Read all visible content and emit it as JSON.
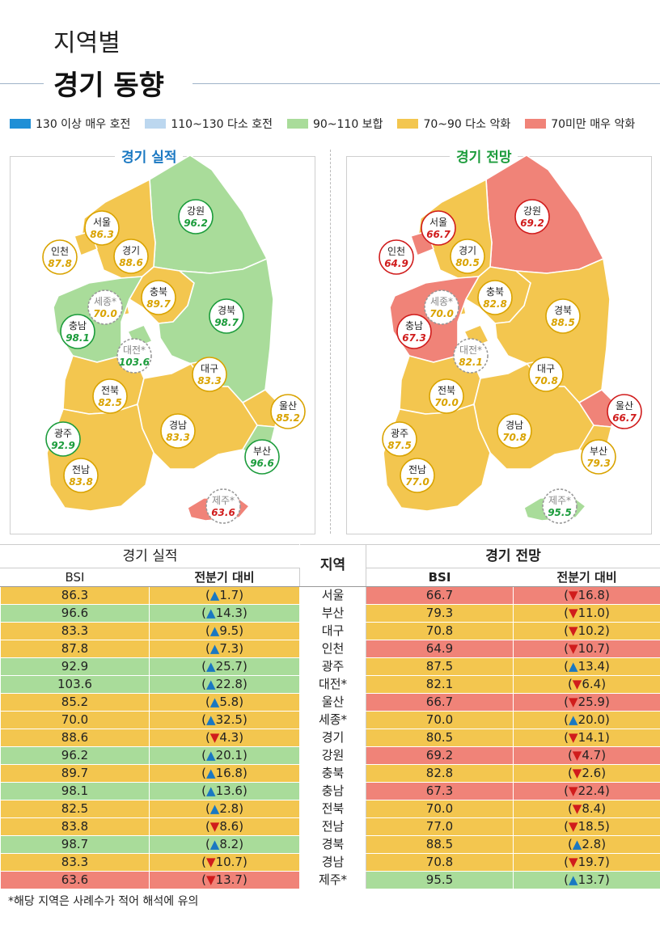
{
  "header": {
    "subtitle": "지역별",
    "title": "경기 동향"
  },
  "legend": [
    {
      "label": "130 이상 매우 호전",
      "color": "#1f8fd6"
    },
    {
      "label": "110~130 다소 호전",
      "color": "#bcd7ef"
    },
    {
      "label": "90~110 보합",
      "color": "#a9dc9a"
    },
    {
      "label": "70~90 다소 악화",
      "color": "#f3c64f"
    },
    {
      "label": "70미만 매우 악화",
      "color": "#f08378"
    }
  ],
  "colors": {
    "level_90_110": "#a9dc9a",
    "level_70_90": "#f3c64f",
    "level_under_70": "#f08378",
    "up_arrow": "#1a78c2",
    "down_arrow": "#d01c1c",
    "badge_green": "#1c9c3c",
    "badge_red": "#d01c1c",
    "badge_orange": "#d9a300",
    "badge_gray": "#999999"
  },
  "maps": {
    "left_title": "경기 실적",
    "right_title": "경기 전망"
  },
  "table": {
    "header_left": "경기 실적",
    "header_center": "지역",
    "header_right": "경기 전망",
    "sub_bsi_left": "BSI",
    "sub_change_left": "전분기 대비",
    "sub_bsi_right": "BSI",
    "sub_change_right": "전분기 대비"
  },
  "footnote": "*해당 지역은 사례수가 적어 해석에 유의",
  "chart_data": {
    "type": "table",
    "title": "경기 동향",
    "columns": [
      "경기 실적 BSI",
      "경기 실적 전분기 대비",
      "지역",
      "경기 전망 BSI",
      "경기 전망 전분기 대비"
    ],
    "rows": [
      {
        "region": "서울",
        "perf_bsi": "86.3",
        "perf_dir": "up",
        "perf_chg": "1.7",
        "out_bsi": "66.7",
        "out_dir": "down",
        "out_chg": "16.8"
      },
      {
        "region": "부산",
        "perf_bsi": "96.6",
        "perf_dir": "up",
        "perf_chg": "14.3",
        "out_bsi": "79.3",
        "out_dir": "down",
        "out_chg": "11.0"
      },
      {
        "region": "대구",
        "perf_bsi": "83.3",
        "perf_dir": "up",
        "perf_chg": "9.5",
        "out_bsi": "70.8",
        "out_dir": "down",
        "out_chg": "10.2"
      },
      {
        "region": "인천",
        "perf_bsi": "87.8",
        "perf_dir": "up",
        "perf_chg": "7.3",
        "out_bsi": "64.9",
        "out_dir": "down",
        "out_chg": "10.7"
      },
      {
        "region": "광주",
        "perf_bsi": "92.9",
        "perf_dir": "up",
        "perf_chg": "25.7",
        "out_bsi": "87.5",
        "out_dir": "up",
        "out_chg": "13.4"
      },
      {
        "region": "대전*",
        "perf_bsi": "103.6",
        "perf_dir": "up",
        "perf_chg": "22.8",
        "out_bsi": "82.1",
        "out_dir": "down",
        "out_chg": "6.4"
      },
      {
        "region": "울산",
        "perf_bsi": "85.2",
        "perf_dir": "up",
        "perf_chg": "5.8",
        "out_bsi": "66.7",
        "out_dir": "down",
        "out_chg": "25.9"
      },
      {
        "region": "세종*",
        "perf_bsi": "70.0",
        "perf_dir": "up",
        "perf_chg": "32.5",
        "out_bsi": "70.0",
        "out_dir": "up",
        "out_chg": "20.0"
      },
      {
        "region": "경기",
        "perf_bsi": "88.6",
        "perf_dir": "down",
        "perf_chg": "4.3",
        "out_bsi": "80.5",
        "out_dir": "down",
        "out_chg": "14.1"
      },
      {
        "region": "강원",
        "perf_bsi": "96.2",
        "perf_dir": "up",
        "perf_chg": "20.1",
        "out_bsi": "69.2",
        "out_dir": "down",
        "out_chg": "4.7"
      },
      {
        "region": "충북",
        "perf_bsi": "89.7",
        "perf_dir": "up",
        "perf_chg": "16.8",
        "out_bsi": "82.8",
        "out_dir": "down",
        "out_chg": "2.6"
      },
      {
        "region": "충남",
        "perf_bsi": "98.1",
        "perf_dir": "up",
        "perf_chg": "13.6",
        "out_bsi": "67.3",
        "out_dir": "down",
        "out_chg": "22.4"
      },
      {
        "region": "전북",
        "perf_bsi": "82.5",
        "perf_dir": "up",
        "perf_chg": "2.8",
        "out_bsi": "70.0",
        "out_dir": "down",
        "out_chg": "8.4"
      },
      {
        "region": "전남",
        "perf_bsi": "83.8",
        "perf_dir": "down",
        "perf_chg": "8.6",
        "out_bsi": "77.0",
        "out_dir": "down",
        "out_chg": "18.5"
      },
      {
        "region": "경북",
        "perf_bsi": "98.7",
        "perf_dir": "up",
        "perf_chg": "8.2",
        "out_bsi": "88.5",
        "out_dir": "up",
        "out_chg": "2.8"
      },
      {
        "region": "경남",
        "perf_bsi": "83.3",
        "perf_dir": "down",
        "perf_chg": "10.7",
        "out_bsi": "70.8",
        "out_dir": "down",
        "out_chg": "19.7"
      },
      {
        "region": "제주*",
        "perf_bsi": "63.6",
        "perf_dir": "down",
        "perf_chg": "13.7",
        "out_bsi": "95.5",
        "out_dir": "up",
        "out_chg": "13.7"
      }
    ]
  }
}
